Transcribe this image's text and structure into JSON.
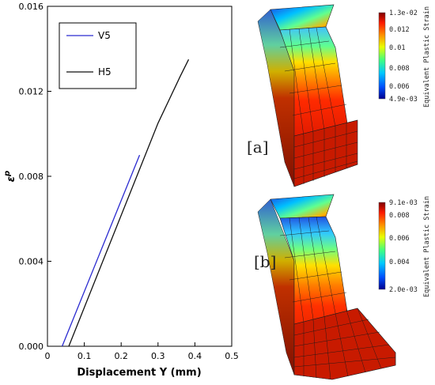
{
  "chart_data": {
    "type": "line",
    "title": "",
    "xlabel": "Displacement Y (mm)",
    "ylabel": "ε",
    "ylabel_superscript": "p",
    "xlim": [
      0,
      0.5
    ],
    "ylim": [
      0,
      0.016
    ],
    "xticks": [
      "0",
      "0.1",
      "0.2",
      "0.3",
      "0.4",
      "0.5"
    ],
    "yticks": [
      "0.000",
      "0.004",
      "0.008",
      "0.012",
      "0.016"
    ],
    "grid": false,
    "legend_position": "top-left",
    "series": [
      {
        "name": "V5",
        "color": "#2a2ad0",
        "points": [
          [
            0.04,
            0.0
          ],
          [
            0.25,
            0.009
          ]
        ]
      },
      {
        "name": "H5",
        "color": "#111111",
        "points": [
          [
            0.058,
            0.0
          ],
          [
            0.3,
            0.0105
          ],
          [
            0.36,
            0.0127
          ],
          [
            0.383,
            0.0135
          ]
        ]
      }
    ]
  },
  "panels": [
    {
      "label": "[a]",
      "colorbar": {
        "title": "Equivalent Plastic Strain",
        "ticks": [
          "1.3e-02",
          "0.012",
          "0.01",
          "0.008",
          "0.006",
          "4.9e-03"
        ],
        "tick_values": [
          0.013,
          0.012,
          0.01,
          0.008,
          0.006,
          0.0049
        ],
        "range": [
          0.0049,
          0.013
        ]
      }
    },
    {
      "label": "[b]",
      "colorbar": {
        "title": "Equivalent Plastic Strain",
        "ticks": [
          "9.1e-03",
          "0.008",
          "0.006",
          "0.004",
          "2.0e-03"
        ],
        "tick_values": [
          0.0091,
          0.008,
          0.006,
          0.004,
          0.002
        ],
        "range": [
          0.002,
          0.0091
        ]
      }
    }
  ],
  "colors": {
    "colormap": [
      "#00008f",
      "#0050ff",
      "#00c8ff",
      "#40ff80",
      "#e8ff00",
      "#ff9000",
      "#ff1a00",
      "#800000"
    ]
  }
}
